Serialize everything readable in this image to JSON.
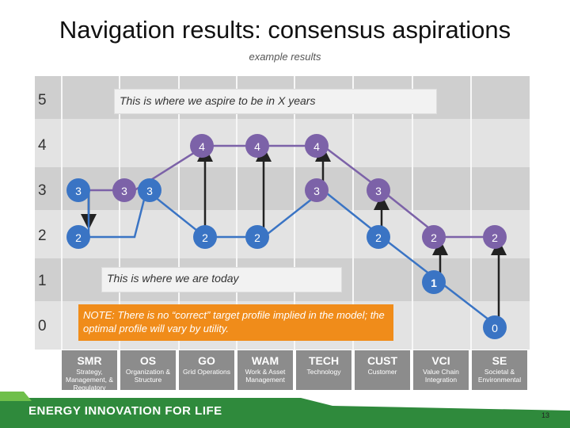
{
  "title": "Navigation results: consensus aspirations",
  "subtitle": "example results",
  "row_labels": [
    "5",
    "4",
    "3",
    "2",
    "1",
    "0"
  ],
  "aspire_label": "This is where we aspire to be in X years",
  "today_label": "This is where we are today",
  "note": "NOTE: There is no “correct” target profile implied in the model; the optimal profile will vary by utility.",
  "categories": [
    {
      "abbr": "SMR",
      "desc": "Strategy, Management, & Regulatory"
    },
    {
      "abbr": "OS",
      "desc": "Organization & Structure"
    },
    {
      "abbr": "GO",
      "desc": "Grid Operations"
    },
    {
      "abbr": "WAM",
      "desc": "Work & Asset Management"
    },
    {
      "abbr": "TECH",
      "desc": "Technology"
    },
    {
      "abbr": "CUST",
      "desc": "Customer"
    },
    {
      "abbr": "VCI",
      "desc": "Value Chain Integration"
    },
    {
      "abbr": "SE",
      "desc": "Societal & Environmental"
    }
  ],
  "current_profile": [
    "3",
    "2",
    "3",
    "2",
    "2",
    "2",
    "1",
    "0"
  ],
  "aspiration_profile": [
    "3",
    "3",
    "4",
    "4",
    "4",
    "3",
    "2",
    "2"
  ],
  "colors": {
    "current": "#3a74c4",
    "aspiration": "#7c62a8",
    "note_bg": "#f08c1a",
    "footer": "#2f8a3c"
  },
  "footer": {
    "tagline": "ENERGY INNOVATION FOR LIFE",
    "page": "13"
  }
}
